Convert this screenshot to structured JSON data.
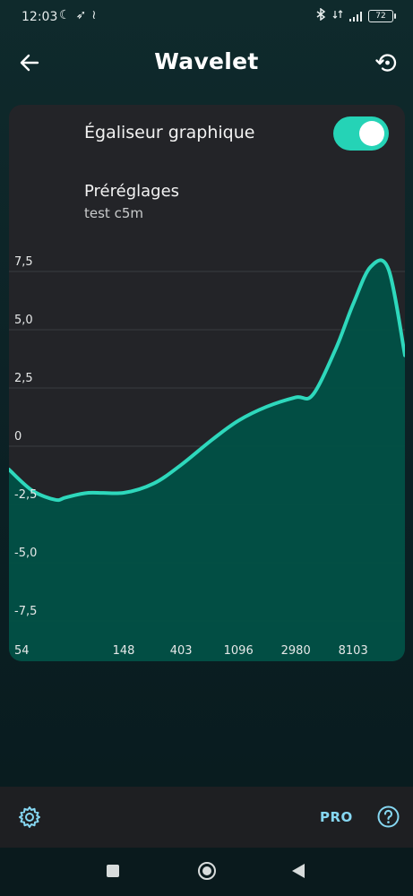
{
  "status_bar": {
    "time": "12:03",
    "battery": "72",
    "icons_left": [
      "moon-icon",
      "rocket-icon",
      "waveform-icon"
    ],
    "icons_right": [
      "bluetooth-icon",
      "network-icon",
      "signal-icon",
      "battery-icon"
    ]
  },
  "app_bar": {
    "title": "Wavelet",
    "back_icon": "arrow-left-icon",
    "reset_icon": "restore-icon"
  },
  "equalizer": {
    "label": "Égaliseur graphique",
    "enabled": true,
    "presets_title": "Préréglages",
    "preset_value": "test c5m"
  },
  "chart_data": {
    "type": "area",
    "title": "",
    "xlabel": "",
    "ylabel": "",
    "x_scale": "log",
    "y_ticks": [
      "7,5",
      "5,0",
      "2,5",
      "0",
      "-2,5",
      "-5,0",
      "-7,5"
    ],
    "x_ticks": [
      "54",
      "148",
      "403",
      "1096",
      "2980",
      "8103"
    ],
    "ylim": [
      -7.5,
      7.5
    ],
    "grid": true,
    "line_color": "#2ed8bc",
    "fill_color": "#015146",
    "x": [
      20,
      30,
      45,
      54,
      80,
      148,
      250,
      403,
      700,
      1096,
      1800,
      2980,
      4000,
      6000,
      8103,
      11000,
      15000,
      20000
    ],
    "y": [
      -1.0,
      -1.9,
      -2.3,
      -2.2,
      -2.0,
      -2.0,
      -1.6,
      -0.8,
      0.3,
      1.1,
      1.7,
      2.1,
      2.2,
      4.2,
      6.1,
      7.7,
      7.6,
      3.9
    ]
  },
  "bottom_bar": {
    "settings_icon": "gear-icon",
    "pro_label": "PRO",
    "help_icon": "help-circle-icon"
  },
  "nav_bar": {
    "icons": [
      "recents-square-icon",
      "home-circle-icon",
      "back-triangle-icon"
    ]
  },
  "colors": {
    "accent": "#25d3b6",
    "card": "#232428",
    "pro": "#86d7f2"
  }
}
